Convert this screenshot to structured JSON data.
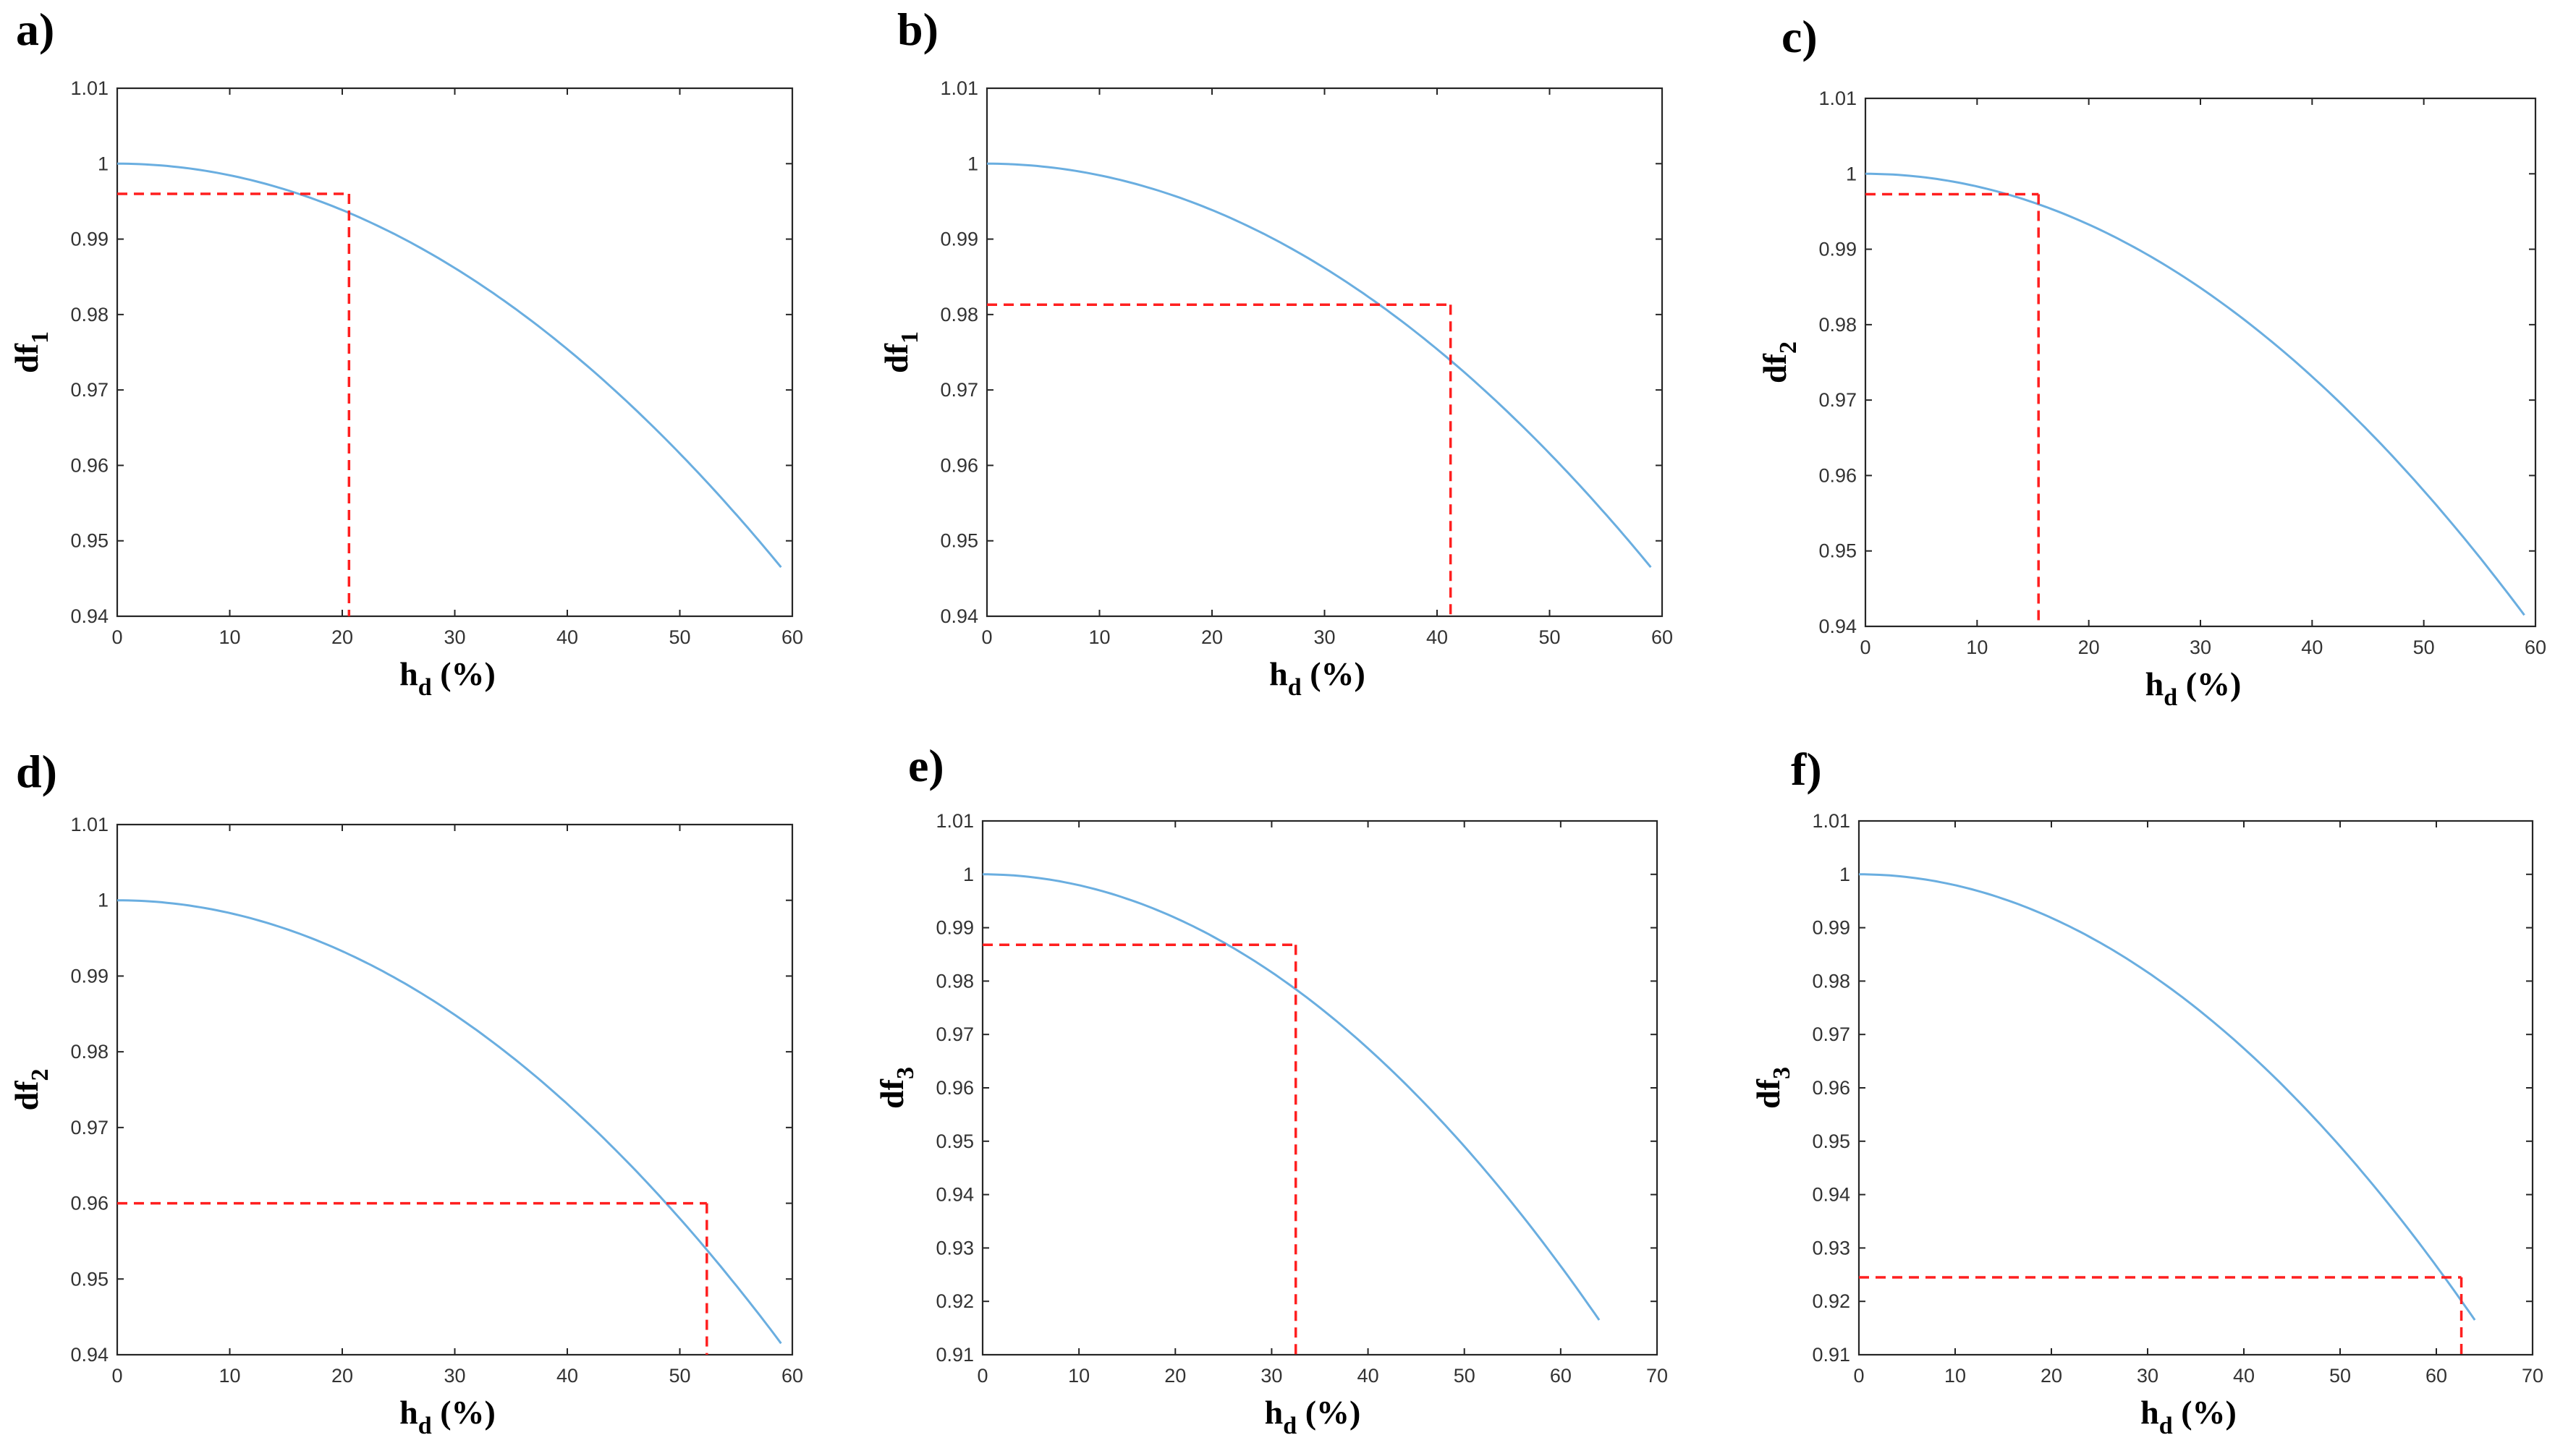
{
  "chart_data": [
    {
      "type": "line",
      "panel": "a)",
      "xlabel": "h",
      "xlabel_sub": "d",
      "xlabel_suffix": " (%)",
      "ylabel": "df",
      "ylabel_sub": "1",
      "xlim": [
        0,
        60
      ],
      "ylim": [
        0.94,
        1.01
      ],
      "xticks": [
        0,
        10,
        20,
        30,
        40,
        50,
        60
      ],
      "yticks": [
        "0.94",
        "0.95",
        "0.96",
        "0.97",
        "0.98",
        "0.99",
        "1",
        "1.01"
      ],
      "curve": {
        "x_end": 59,
        "y_end": 0.9465
      },
      "marker": {
        "x": 20.6,
        "y": 0.996
      }
    },
    {
      "type": "line",
      "panel": "b)",
      "xlabel": "h",
      "xlabel_sub": "d",
      "xlabel_suffix": " (%)",
      "ylabel": "df",
      "ylabel_sub": "1",
      "xlim": [
        0,
        60
      ],
      "ylim": [
        0.94,
        1.01
      ],
      "xticks": [
        0,
        10,
        20,
        30,
        40,
        50,
        60
      ],
      "yticks": [
        "0.94",
        "0.95",
        "0.96",
        "0.97",
        "0.98",
        "0.99",
        "1",
        "1.01"
      ],
      "curve": {
        "x_end": 59,
        "y_end": 0.9465
      },
      "marker": {
        "x": 41.2,
        "y": 0.9813
      }
    },
    {
      "type": "line",
      "panel": "c)",
      "xlabel": "h",
      "xlabel_sub": "d",
      "xlabel_suffix": " (%)",
      "ylabel": "df",
      "ylabel_sub": "2",
      "xlim": [
        0,
        60
      ],
      "ylim": [
        0.94,
        1.01
      ],
      "xticks": [
        0,
        10,
        20,
        30,
        40,
        50,
        60
      ],
      "yticks": [
        "0.94",
        "0.95",
        "0.96",
        "0.97",
        "0.98",
        "0.99",
        "1",
        "1.01"
      ],
      "curve": {
        "x_end": 59,
        "y_end": 0.9415
      },
      "marker": {
        "x": 15.5,
        "y": 0.9973
      }
    },
    {
      "type": "line",
      "panel": "d)",
      "xlabel": "h",
      "xlabel_sub": "d",
      "xlabel_suffix": " (%)",
      "ylabel": "df",
      "ylabel_sub": "2",
      "xlim": [
        0,
        60
      ],
      "ylim": [
        0.94,
        1.01
      ],
      "xticks": [
        0,
        10,
        20,
        30,
        40,
        50,
        60
      ],
      "yticks": [
        "0.94",
        "0.95",
        "0.96",
        "0.97",
        "0.98",
        "0.99",
        "1",
        "1.01"
      ],
      "curve": {
        "x_end": 59,
        "y_end": 0.9415
      },
      "marker": {
        "x": 52.4,
        "y": 0.96
      }
    },
    {
      "type": "line",
      "panel": "e)",
      "xlabel": "h",
      "xlabel_sub": "d",
      "xlabel_suffix": " (%)",
      "ylabel": "df",
      "ylabel_sub": "3",
      "xlim": [
        0,
        70
      ],
      "ylim": [
        0.91,
        1.01
      ],
      "xticks": [
        0,
        10,
        20,
        30,
        40,
        50,
        60,
        70
      ],
      "yticks": [
        "0.91",
        "0.92",
        "0.93",
        "0.94",
        "0.95",
        "0.96",
        "0.97",
        "0.98",
        "0.99",
        "1",
        "1.01"
      ],
      "curve": {
        "x_end": 64,
        "y_end": 0.9165
      },
      "marker": {
        "x": 32.5,
        "y": 0.9868
      }
    },
    {
      "type": "line",
      "panel": "f)",
      "xlabel": "h",
      "xlabel_sub": "d",
      "xlabel_suffix": " (%)",
      "ylabel": "df",
      "ylabel_sub": "3",
      "xlim": [
        0,
        70
      ],
      "ylim": [
        0.91,
        1.01
      ],
      "xticks": [
        0,
        10,
        20,
        30,
        40,
        50,
        60,
        70
      ],
      "yticks": [
        "0.91",
        "0.92",
        "0.93",
        "0.94",
        "0.95",
        "0.96",
        "0.97",
        "0.98",
        "0.99",
        "1",
        "1.01"
      ],
      "curve": {
        "x_end": 64,
        "y_end": 0.9165
      },
      "marker": {
        "x": 62.6,
        "y": 0.9245
      }
    }
  ],
  "colors": {
    "curve": "#6aaee0",
    "marker": "#ff1f1f",
    "axes": "#262626"
  }
}
